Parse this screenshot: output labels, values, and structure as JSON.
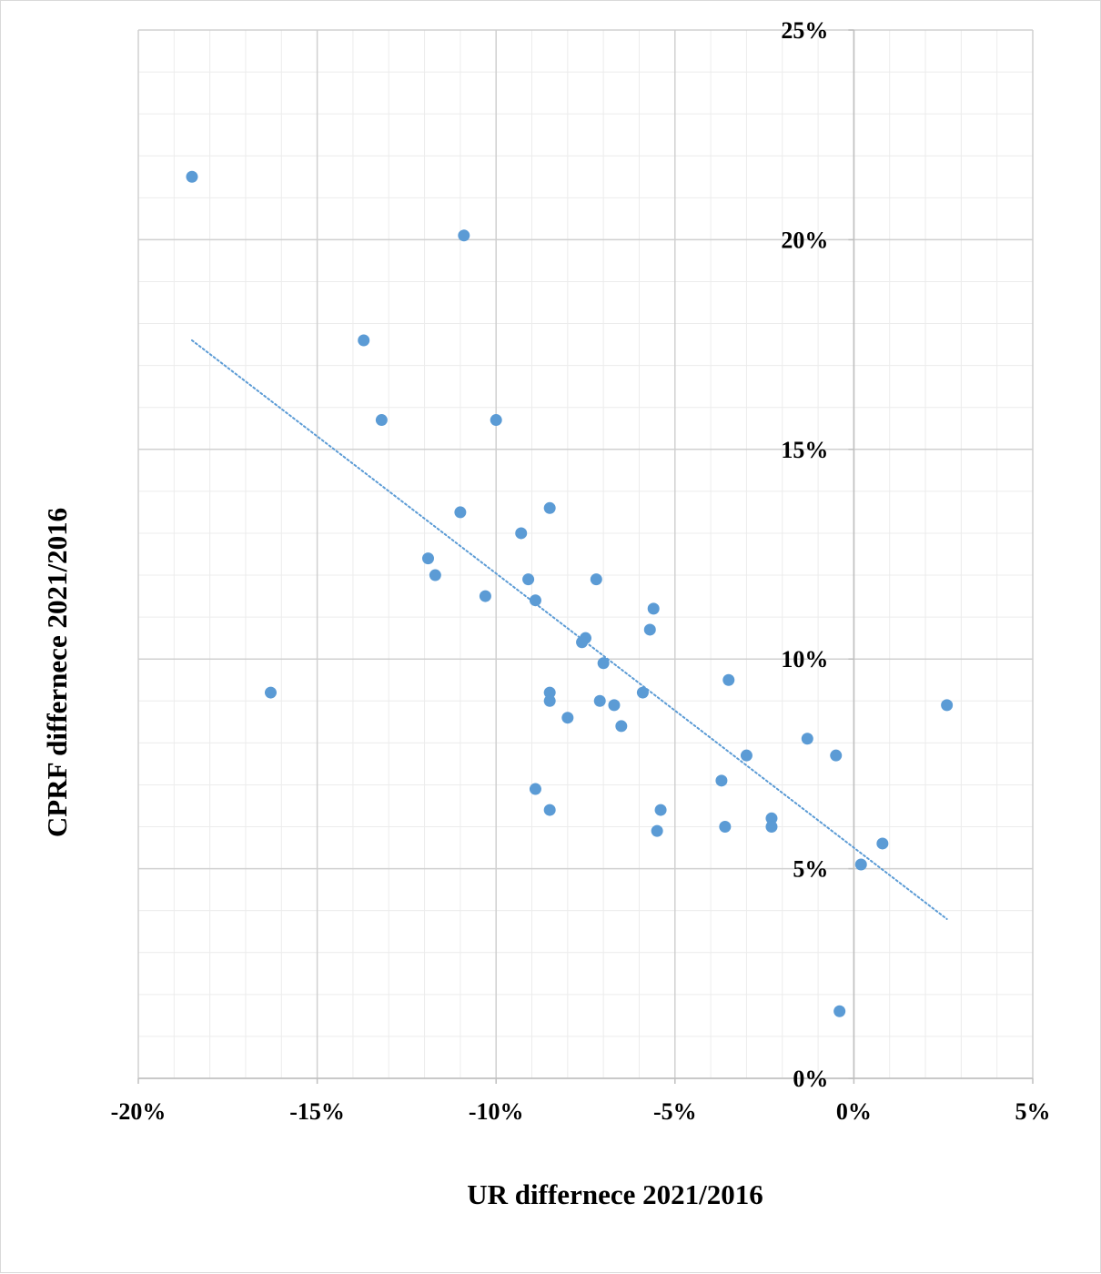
{
  "chart_data": {
    "type": "scatter",
    "title": "",
    "xlabel": "UR differnece 2021/2016",
    "ylabel": "CPRF differnece 2021/2016",
    "xlim": [
      -0.2,
      0.05
    ],
    "ylim": [
      0.0,
      0.25
    ],
    "x_ticks": [
      -0.2,
      -0.15,
      -0.1,
      -0.05,
      0.0,
      0.05
    ],
    "x_tick_labels": [
      "-20%",
      "-15%",
      "-10%",
      "-5%",
      "0%",
      "5%"
    ],
    "y_ticks": [
      0.0,
      0.05,
      0.1,
      0.15,
      0.2,
      0.25
    ],
    "y_tick_labels": [
      "0%",
      "5%",
      "10%",
      "15%",
      "20%",
      "25%"
    ],
    "grid": {
      "major": true,
      "minor": true
    },
    "y_axis_position": "x = 0",
    "marker_color": "#5b9bd5",
    "trendline": {
      "type": "linear",
      "style": "dotted",
      "color": "#5b9bd5",
      "x": [
        -0.185,
        0.026
      ],
      "y": [
        0.176,
        0.038
      ]
    },
    "points": [
      {
        "x": -0.185,
        "y": 0.215
      },
      {
        "x": -0.109,
        "y": 0.201
      },
      {
        "x": -0.137,
        "y": 0.176
      },
      {
        "x": -0.132,
        "y": 0.157
      },
      {
        "x": -0.1,
        "y": 0.157
      },
      {
        "x": -0.11,
        "y": 0.135
      },
      {
        "x": -0.085,
        "y": 0.136
      },
      {
        "x": -0.093,
        "y": 0.13
      },
      {
        "x": -0.119,
        "y": 0.124
      },
      {
        "x": -0.117,
        "y": 0.12
      },
      {
        "x": -0.091,
        "y": 0.119
      },
      {
        "x": -0.072,
        "y": 0.119
      },
      {
        "x": -0.103,
        "y": 0.115
      },
      {
        "x": -0.089,
        "y": 0.114
      },
      {
        "x": -0.056,
        "y": 0.112
      },
      {
        "x": -0.057,
        "y": 0.107
      },
      {
        "x": -0.075,
        "y": 0.105
      },
      {
        "x": -0.076,
        "y": 0.104
      },
      {
        "x": -0.07,
        "y": 0.099
      },
      {
        "x": -0.035,
        "y": 0.095
      },
      {
        "x": -0.163,
        "y": 0.092
      },
      {
        "x": -0.085,
        "y": 0.092
      },
      {
        "x": -0.059,
        "y": 0.092
      },
      {
        "x": -0.085,
        "y": 0.09
      },
      {
        "x": -0.071,
        "y": 0.09
      },
      {
        "x": -0.067,
        "y": 0.089
      },
      {
        "x": 0.026,
        "y": 0.089
      },
      {
        "x": -0.08,
        "y": 0.086
      },
      {
        "x": -0.065,
        "y": 0.084
      },
      {
        "x": -0.013,
        "y": 0.081
      },
      {
        "x": -0.03,
        "y": 0.077
      },
      {
        "x": -0.005,
        "y": 0.077
      },
      {
        "x": -0.037,
        "y": 0.071
      },
      {
        "x": -0.089,
        "y": 0.069
      },
      {
        "x": -0.085,
        "y": 0.064
      },
      {
        "x": -0.054,
        "y": 0.064
      },
      {
        "x": -0.023,
        "y": 0.062
      },
      {
        "x": -0.036,
        "y": 0.06
      },
      {
        "x": -0.023,
        "y": 0.06
      },
      {
        "x": -0.055,
        "y": 0.059
      },
      {
        "x": 0.008,
        "y": 0.056
      },
      {
        "x": 0.002,
        "y": 0.051
      },
      {
        "x": -0.004,
        "y": 0.016
      }
    ]
  }
}
